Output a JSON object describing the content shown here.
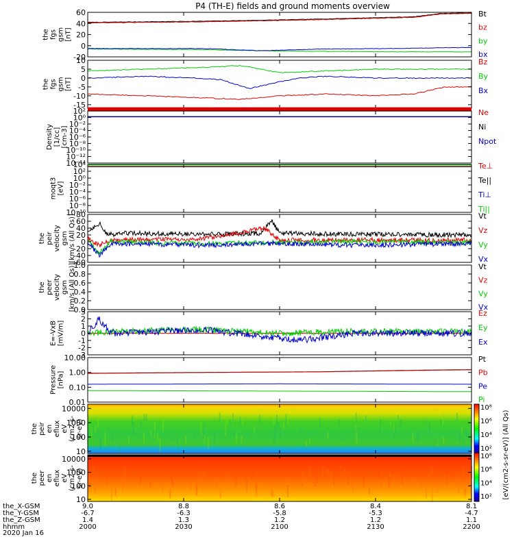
{
  "title": "P4 (TH-E) fields and ground moments overview",
  "colors": {
    "black": "#000000",
    "red": "#e00000",
    "green": "#00cc00",
    "blue": "#0000cc"
  },
  "chart_data": [
    {
      "type": "line",
      "id": "fgs_gsm",
      "ylabel_lines": [
        "the",
        "fgs",
        "gsm",
        "[nT]"
      ],
      "ylim": [
        -20,
        60
      ],
      "yticks": [
        -20,
        0,
        20,
        40,
        60
      ],
      "ytick_labels": [
        "-20",
        "0",
        "20",
        "40",
        "60"
      ],
      "legend": [
        "Bt",
        "bz",
        "by",
        "bx"
      ],
      "series": [
        {
          "name": "Bt",
          "color": "#000000",
          "x": [
            0,
            0.3,
            0.55,
            0.85,
            0.92,
            1
          ],
          "values": [
            42,
            44,
            47,
            52,
            58,
            59
          ]
        },
        {
          "name": "bz",
          "color": "#e00000",
          "x": [
            0,
            0.3,
            0.55,
            0.85,
            0.92,
            1
          ],
          "values": [
            41,
            43,
            46,
            51,
            57,
            58
          ]
        },
        {
          "name": "by",
          "color": "#00cc00",
          "x": [
            0,
            0.3,
            0.45,
            0.6,
            0.8,
            1
          ],
          "values": [
            -6,
            -7,
            -9,
            -10,
            -11,
            -11
          ]
        },
        {
          "name": "bx",
          "color": "#0000cc",
          "x": [
            0,
            0.3,
            0.45,
            0.6,
            0.8,
            1
          ],
          "values": [
            -5,
            -5,
            -9,
            -6,
            -5,
            -3
          ]
        }
      ]
    },
    {
      "type": "line",
      "id": "fgs_gsm_zoom",
      "ylabel_lines": [
        "the",
        "fgs",
        "gsm",
        "[nT]"
      ],
      "ylim": [
        -17,
        10
      ],
      "yticks": [
        -15,
        -10,
        -5,
        0,
        5,
        10
      ],
      "ytick_labels": [
        "-15",
        "-10",
        "-5",
        "0",
        "5",
        "10"
      ],
      "legend": [
        "Bz",
        "By",
        "Bx"
      ],
      "series": [
        {
          "name": "Bz",
          "color": "#e00000",
          "x": [
            0,
            0.15,
            0.28,
            0.4,
            0.5,
            0.62,
            0.75,
            0.85,
            0.93,
            1
          ],
          "values": [
            -9,
            -10,
            -11,
            -12,
            -10,
            -9,
            -10,
            -9,
            -5,
            -5
          ]
        },
        {
          "name": "By",
          "color": "#00cc00",
          "x": [
            0,
            0.15,
            0.3,
            0.4,
            0.5,
            0.62,
            0.75,
            0.85,
            0.93,
            1
          ],
          "values": [
            4,
            5,
            6,
            7,
            3,
            4,
            5,
            5,
            5,
            5
          ]
        },
        {
          "name": "Bx",
          "color": "#0000cc",
          "x": [
            0,
            0.15,
            0.28,
            0.35,
            0.42,
            0.48,
            0.55,
            0.62,
            0.75,
            0.85,
            0.93,
            1
          ],
          "values": [
            0,
            1,
            0,
            -1,
            -6,
            -3,
            0,
            1,
            0,
            0,
            0,
            0
          ]
        }
      ]
    },
    {
      "type": "line",
      "id": "density",
      "ylabel_lines": [
        "Density",
        "[1/cc]",
        "[cm-3]"
      ],
      "ylim": [
        -14,
        2
      ],
      "yticks": [
        2,
        0,
        -2,
        -4,
        -6,
        -8,
        -10,
        -12,
        -14
      ],
      "ytick_labels": [
        "10²",
        "10⁰",
        "10⁻²",
        "10⁻⁴",
        "10⁻⁶",
        "10⁻⁸",
        "10⁻¹⁰",
        "10⁻¹²",
        "10⁻¹⁴"
      ],
      "legend": [
        "Ne",
        "Ni",
        "Npot"
      ],
      "series": [
        {
          "name": "Ne",
          "color": "#e00000",
          "x": [
            0,
            1
          ],
          "values": [
            2.5,
            2.5
          ]
        },
        {
          "name": "Ni",
          "color": "#000000",
          "x": [
            0,
            1
          ],
          "values": [
            0.3,
            0.3
          ]
        },
        {
          "name": "Npot",
          "color": "#0000cc",
          "x": [
            0,
            1
          ],
          "values": [
            0.2,
            0.2
          ]
        }
      ]
    },
    {
      "type": "line",
      "id": "temperature",
      "ylabel_lines": [
        "moqt3",
        "[eV]"
      ],
      "ylim": [
        -10,
        4
      ],
      "yticks": [
        4,
        2,
        0,
        -2,
        -4,
        -6,
        -8,
        -10
      ],
      "ytick_labels": [
        "10⁴",
        "10²",
        "10⁰",
        "10⁻²",
        "10⁻⁴",
        "10⁻⁶",
        "10⁻⁸",
        "10⁻¹⁰"
      ],
      "legend": [
        "Te⊥",
        "Te||",
        "Ti⊥",
        "Ti||"
      ],
      "series": [
        {
          "name": "Te⊥",
          "color": "#e00000",
          "x": [
            0,
            1
          ],
          "values": [
            3.4,
            3.4
          ]
        },
        {
          "name": "Te||",
          "color": "#000000",
          "x": [
            0,
            1
          ],
          "values": [
            3.3,
            3.3
          ]
        },
        {
          "name": "Ti⊥",
          "color": "#0000cc",
          "x": [
            0,
            1
          ],
          "values": [
            3.9,
            3.9
          ]
        },
        {
          "name": "Ti||",
          "color": "#00cc00",
          "x": [
            0,
            1
          ],
          "values": [
            3.8,
            3.8
          ]
        }
      ]
    },
    {
      "type": "line",
      "id": "peir_velocity",
      "ylabel_lines": [
        "the",
        "peir",
        "velocity",
        "gsm",
        "[km/s (All Qs)]"
      ],
      "ylim": [
        -60,
        80
      ],
      "yticks": [
        -60,
        -40,
        -20,
        0,
        20,
        40,
        60,
        80
      ],
      "ytick_labels": [
        "-60",
        "-40",
        "-20",
        "0",
        "20",
        "40",
        "60",
        "80"
      ],
      "legend": [
        "Vt",
        "Vz",
        "Vy",
        "Vx"
      ],
      "series": [
        {
          "name": "Vt",
          "color": "#000000",
          "x": [
            0,
            0.03,
            0.05,
            0.1,
            0.3,
            0.45,
            0.48,
            0.5,
            0.7,
            1
          ],
          "values": [
            30,
            55,
            20,
            25,
            22,
            25,
            60,
            25,
            22,
            20
          ]
        },
        {
          "name": "Vz",
          "color": "#e00000",
          "x": [
            0,
            0.03,
            0.06,
            0.3,
            0.46,
            0.5,
            0.7,
            1
          ],
          "values": [
            10,
            -10,
            5,
            8,
            40,
            5,
            5,
            5
          ]
        },
        {
          "name": "Vy",
          "color": "#00cc00",
          "x": [
            0,
            0.03,
            0.06,
            0.3,
            0.5,
            0.7,
            1
          ],
          "values": [
            5,
            -35,
            0,
            -5,
            -2,
            0,
            -2
          ]
        },
        {
          "name": "Vx",
          "color": "#0000cc",
          "x": [
            0,
            0.03,
            0.06,
            0.3,
            0.5,
            0.7,
            1
          ],
          "values": [
            0,
            -40,
            -5,
            -10,
            -5,
            -10,
            -5
          ]
        }
      ]
    },
    {
      "type": "line",
      "id": "peer_velocity",
      "ylabel_lines": [
        "the",
        "peer",
        "velocity",
        "gsm",
        "[km/s (All Qs)]"
      ],
      "ylim": [
        0,
        1
      ],
      "yticks": [
        0,
        0.2,
        0.4,
        0.6,
        0.8,
        1.0
      ],
      "ytick_labels": [
        "0.0",
        "0.2",
        "0.4",
        "0.6",
        "0.8",
        "1.0"
      ],
      "legend": [
        "Vt",
        "Vz",
        "Vy",
        "Vx"
      ],
      "series": []
    },
    {
      "type": "line",
      "id": "efield",
      "ylabel_lines": [
        "E=-VxB",
        "[mV/m]"
      ],
      "ylim": [
        -3,
        3
      ],
      "yticks": [
        -3,
        -2,
        -1,
        0,
        1,
        2,
        3
      ],
      "ytick_labels": [
        "-3",
        "-2",
        "-1",
        "0",
        "1",
        "2",
        "3"
      ],
      "legend": [
        "Ez",
        "Ey",
        "Ex"
      ],
      "series": [
        {
          "name": "Ez",
          "color": "#e00000",
          "x": [
            0,
            1
          ],
          "values": [
            0,
            0
          ]
        },
        {
          "name": "Ey",
          "color": "#00cc00",
          "x": [
            0,
            0.1,
            0.3,
            0.5,
            0.7,
            1
          ],
          "values": [
            0,
            0.3,
            0.5,
            0,
            0.3,
            0.2
          ]
        },
        {
          "name": "Ex",
          "color": "#0000cc",
          "x": [
            0,
            0.03,
            0.06,
            0.3,
            0.55,
            0.7,
            1
          ],
          "values": [
            0,
            2,
            0,
            0.5,
            -1,
            0,
            0
          ]
        }
      ]
    },
    {
      "type": "line",
      "id": "pressure",
      "ylabel_lines": [
        "Pressure",
        "[nPa]"
      ],
      "yscale": "log",
      "ylim": [
        0.01,
        10
      ],
      "yticks": [
        0.01,
        0.1,
        1,
        10
      ],
      "ytick_labels": [
        "0.01",
        "0.10",
        "1.00",
        "10.00"
      ],
      "legend": [
        "Pt",
        "Pb",
        "Pe",
        "Pi"
      ],
      "series": [
        {
          "name": "Pt",
          "color": "#000000",
          "x": [
            0,
            0.3,
            0.6,
            0.9,
            1
          ],
          "values": [
            0.88,
            1.0,
            1.1,
            1.45,
            1.55
          ]
        },
        {
          "name": "Pb",
          "color": "#e00000",
          "x": [
            0,
            0.3,
            0.6,
            0.9,
            1
          ],
          "values": [
            0.85,
            0.98,
            1.08,
            1.4,
            1.5
          ]
        },
        {
          "name": "Pe",
          "color": "#0000cc",
          "x": [
            0,
            0.5,
            1
          ],
          "values": [
            0.16,
            0.17,
            0.16
          ]
        },
        {
          "name": "Pi",
          "color": "#00cc00",
          "x": [
            0,
            0.5,
            1
          ],
          "values": [
            0.06,
            0.055,
            0.05
          ]
        }
      ]
    },
    {
      "type": "heatmap",
      "id": "peir_spectrogram",
      "ylabel_lines": [
        "the",
        "peir",
        "en",
        "eflux",
        "eV",
        "(cm2-s-",
        "sr-eV)"
      ],
      "yscale": "log",
      "ylim": [
        7,
        20000
      ],
      "yticks": [
        10,
        100,
        1000,
        10000
      ],
      "ytick_labels": [
        "10",
        "100",
        "1000",
        "10000"
      ],
      "dominant": "green",
      "colorbar_label": "[eV/(cm2-s-sr-eV)] (All Qs)"
    },
    {
      "type": "heatmap",
      "id": "peer_spectrogram",
      "ylabel_lines": [
        "the",
        "peer",
        "en",
        "eflux",
        "eV",
        "(cm2-s-",
        "sr-eV)"
      ],
      "yscale": "log",
      "ylim": [
        7,
        20000
      ],
      "yticks": [
        10,
        100,
        1000,
        10000
      ],
      "ytick_labels": [
        "10",
        "100",
        "1000",
        "10000"
      ],
      "dominant": "orange",
      "colorbar_label": "[eV/(cm2-s-sr-eV)] (All Qs)"
    }
  ],
  "colorbars": {
    "labels": [
      "10⁸",
      "10⁶",
      "10⁴",
      "10²"
    ],
    "unit_label": "[eV/(cm2-s-sr-eV)] (All Qs)"
  },
  "xaxis": {
    "row_labels": [
      "the_X-GSM",
      "the_Y-GSM",
      "the_Z-GSM",
      "hhmm",
      "2020 Jan 16"
    ],
    "columns": [
      {
        "frac": 0.0,
        "vals": [
          "9.0",
          "-6.7",
          "1.4",
          "2000"
        ]
      },
      {
        "frac": 0.25,
        "vals": [
          "8.8",
          "-6.3",
          "1.3",
          "2030"
        ]
      },
      {
        "frac": 0.5,
        "vals": [
          "8.6",
          "-5.8",
          "1.2",
          "2100"
        ]
      },
      {
        "frac": 0.75,
        "vals": [
          "8.4",
          "-5.3",
          "1.2",
          "2130"
        ]
      },
      {
        "frac": 1.0,
        "vals": [
          "8.1",
          "-4.7",
          "1.1",
          "2200"
        ]
      }
    ]
  }
}
